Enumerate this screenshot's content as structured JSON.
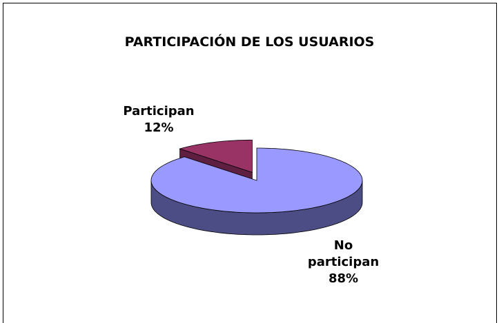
{
  "chart_data": {
    "type": "pie",
    "title": "PARTICIPACIÓN DE LOS USUARIOS",
    "categories": [
      "Participan",
      "No participan"
    ],
    "values": [
      12,
      88
    ],
    "value_labels": [
      "12%",
      "88%"
    ],
    "colors": [
      "#993366",
      "#9999ff"
    ],
    "side_colors": [
      "#5e1f40",
      "#4d4d85"
    ]
  }
}
